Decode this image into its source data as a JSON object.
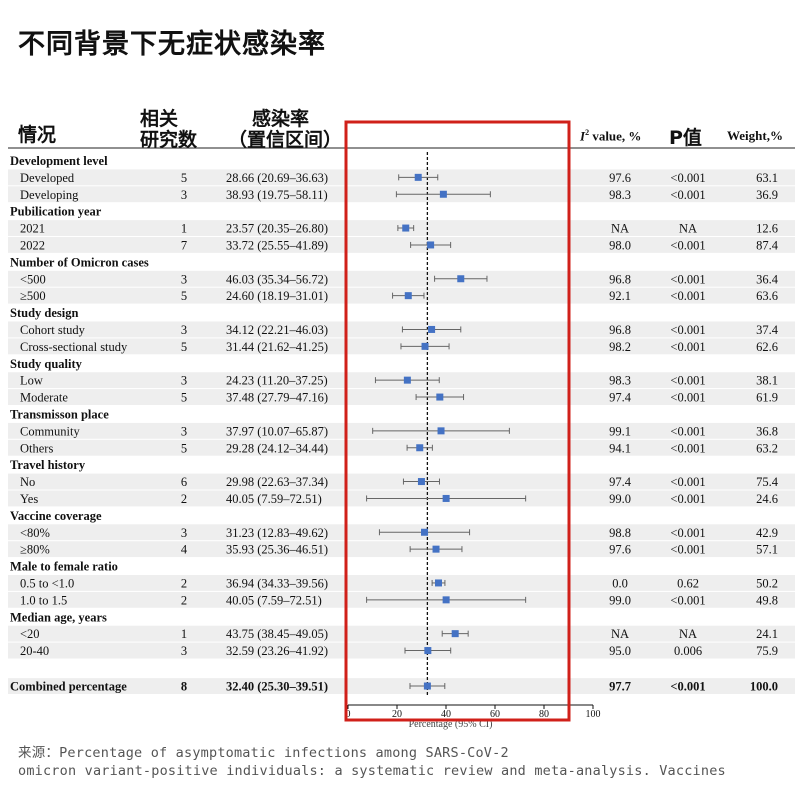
{
  "title": "不同背景下无症状感染率",
  "headers": {
    "situation": "情况",
    "studies_line1": "相关",
    "studies_line2": "研究数",
    "rate_line1": "感染率",
    "rate_line2": "（置信区间）",
    "i2_symbol": "I",
    "i2_sup": "2",
    "i2_rest": " value, %",
    "p_value": "P值",
    "weight": "Weight,%"
  },
  "source": {
    "line1": "来源：Percentage of asymptomatic infections among SARS-CoV-2",
    "line2": "omicron variant-positive individuals: a systematic review and meta-analysis. Vaccines"
  },
  "chart_data": {
    "type": "forest",
    "xlabel": "Percentage (95% CI)",
    "xlim": [
      0,
      100
    ],
    "x_ticks": [
      "0",
      "20",
      "40",
      "60",
      "80",
      "100"
    ],
    "reference_line": 32.4,
    "highlight_color": "#d0201a",
    "marker_color": "#4472c4",
    "rows": [
      {
        "kind": "group",
        "label": "Development level"
      },
      {
        "kind": "item",
        "label": "Developed",
        "n": "5",
        "ci_text": "28.66 (20.69–36.63)",
        "est": 28.66,
        "lo": 20.69,
        "hi": 36.63,
        "i2": "97.6",
        "p": "<0.001",
        "w": "63.1"
      },
      {
        "kind": "item",
        "label": "Developing",
        "n": "3",
        "ci_text": "38.93 (19.75–58.11)",
        "est": 38.93,
        "lo": 19.75,
        "hi": 58.11,
        "i2": "98.3",
        "p": "<0.001",
        "w": "36.9"
      },
      {
        "kind": "group",
        "label": "Pubilication year"
      },
      {
        "kind": "item",
        "label": "2021",
        "n": "1",
        "ci_text": "23.57 (20.35–26.80)",
        "est": 23.57,
        "lo": 20.35,
        "hi": 26.8,
        "i2": "NA",
        "p": "NA",
        "w": "12.6"
      },
      {
        "kind": "item",
        "label": "2022",
        "n": "7",
        "ci_text": "33.72 (25.55–41.89)",
        "est": 33.72,
        "lo": 25.55,
        "hi": 41.89,
        "i2": "98.0",
        "p": "<0.001",
        "w": "87.4"
      },
      {
        "kind": "group",
        "label": "Number of Omicron cases"
      },
      {
        "kind": "item",
        "label": "<500",
        "n": "3",
        "ci_text": "46.03 (35.34–56.72)",
        "est": 46.03,
        "lo": 35.34,
        "hi": 56.72,
        "i2": "96.8",
        "p": "<0.001",
        "w": "36.4"
      },
      {
        "kind": "item",
        "label": "≥500",
        "n": "5",
        "ci_text": "24.60 (18.19–31.01)",
        "est": 24.6,
        "lo": 18.19,
        "hi": 31.01,
        "i2": "92.1",
        "p": "<0.001",
        "w": "63.6"
      },
      {
        "kind": "group",
        "label": "Study design"
      },
      {
        "kind": "item",
        "label": "Cohort study",
        "n": "3",
        "ci_text": "34.12 (22.21–46.03)",
        "est": 34.12,
        "lo": 22.21,
        "hi": 46.03,
        "i2": "96.8",
        "p": "<0.001",
        "w": "37.4"
      },
      {
        "kind": "item",
        "label": "Cross-sectional study",
        "n": "5",
        "ci_text": "31.44 (21.62–41.25)",
        "est": 31.44,
        "lo": 21.62,
        "hi": 41.25,
        "i2": "98.2",
        "p": "<0.001",
        "w": "62.6"
      },
      {
        "kind": "group",
        "label": "Study quality"
      },
      {
        "kind": "item",
        "label": "Low",
        "n": "3",
        "ci_text": "24.23 (11.20–37.25)",
        "est": 24.23,
        "lo": 11.2,
        "hi": 37.25,
        "i2": "98.3",
        "p": "<0.001",
        "w": "38.1"
      },
      {
        "kind": "item",
        "label": "Moderate",
        "n": "5",
        "ci_text": "37.48 (27.79–47.16)",
        "est": 37.48,
        "lo": 27.79,
        "hi": 47.16,
        "i2": "97.4",
        "p": "<0.001",
        "w": "61.9"
      },
      {
        "kind": "group",
        "label": "Transmisson place"
      },
      {
        "kind": "item",
        "label": "Community",
        "n": "3",
        "ci_text": "37.97 (10.07–65.87)",
        "est": 37.97,
        "lo": 10.07,
        "hi": 65.87,
        "i2": "99.1",
        "p": "<0.001",
        "w": "36.8"
      },
      {
        "kind": "item",
        "label": "Others",
        "n": "5",
        "ci_text": "29.28 (24.12–34.44)",
        "est": 29.28,
        "lo": 24.12,
        "hi": 34.44,
        "i2": "94.1",
        "p": "<0.001",
        "w": "63.2"
      },
      {
        "kind": "group",
        "label": "Travel history"
      },
      {
        "kind": "item",
        "label": "No",
        "n": "6",
        "ci_text": "29.98 (22.63–37.34)",
        "est": 29.98,
        "lo": 22.63,
        "hi": 37.34,
        "i2": "97.4",
        "p": "<0.001",
        "w": "75.4"
      },
      {
        "kind": "item",
        "label": "Yes",
        "n": "2",
        "ci_text": "40.05 (7.59–72.51)",
        "est": 40.05,
        "lo": 7.59,
        "hi": 72.51,
        "i2": "99.0",
        "p": "<0.001",
        "w": "24.6"
      },
      {
        "kind": "group",
        "label": "Vaccine coverage"
      },
      {
        "kind": "item",
        "label": "<80%",
        "n": "3",
        "ci_text": "31.23 (12.83–49.62)",
        "est": 31.23,
        "lo": 12.83,
        "hi": 49.62,
        "i2": "98.8",
        "p": "<0.001",
        "w": "42.9"
      },
      {
        "kind": "item",
        "label": "≥80%",
        "n": "4",
        "ci_text": "35.93 (25.36–46.51)",
        "est": 35.93,
        "lo": 25.36,
        "hi": 46.51,
        "i2": "97.6",
        "p": "<0.001",
        "w": "57.1"
      },
      {
        "kind": "group",
        "label": "Male to female ratio"
      },
      {
        "kind": "item",
        "label": "0.5 to <1.0",
        "n": "2",
        "ci_text": "36.94 (34.33–39.56)",
        "est": 36.94,
        "lo": 34.33,
        "hi": 39.56,
        "i2": "0.0",
        "p": "0.62",
        "w": "50.2"
      },
      {
        "kind": "item",
        "label": "1.0 to 1.5",
        "n": "2",
        "ci_text": "40.05 (7.59–72.51)",
        "est": 40.05,
        "lo": 7.59,
        "hi": 72.51,
        "i2": "99.0",
        "p": "<0.001",
        "w": "49.8"
      },
      {
        "kind": "group",
        "label": "Median age, years"
      },
      {
        "kind": "item",
        "label": "<20",
        "n": "1",
        "ci_text": "43.75 (38.45–49.05)",
        "est": 43.75,
        "lo": 38.45,
        "hi": 49.05,
        "i2": "NA",
        "p": "NA",
        "w": "24.1"
      },
      {
        "kind": "item",
        "label": "20-40",
        "n": "3",
        "ci_text": "32.59 (23.26–41.92)",
        "est": 32.59,
        "lo": 23.26,
        "hi": 41.92,
        "i2": "95.0",
        "p": "0.006",
        "w": "75.9"
      },
      {
        "kind": "combined",
        "label": "Combined percentage",
        "n": "8",
        "ci_text": "32.40 (25.30–39.51)",
        "est": 32.4,
        "lo": 25.3,
        "hi": 39.51,
        "i2": "97.7",
        "p": "<0.001",
        "w": "100.0"
      }
    ]
  }
}
